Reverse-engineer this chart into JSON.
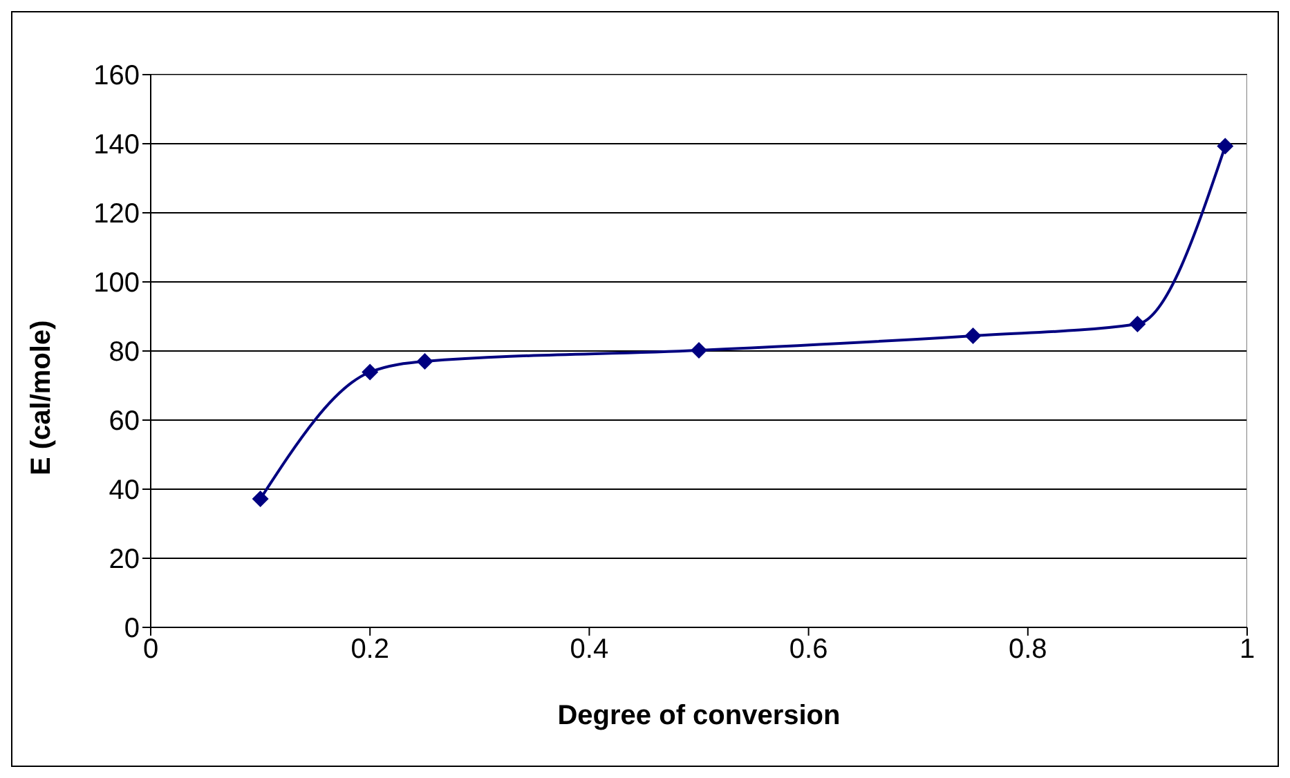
{
  "chart_data": {
    "type": "line",
    "xlabel": "Degree of conversion",
    "ylabel": "E (cal/mole)",
    "x": [
      0.1,
      0.2,
      0.25,
      0.5,
      0.75,
      0.9,
      0.98
    ],
    "series": [
      {
        "color": "#000080",
        "values": [
          37.2,
          73.9,
          77,
          80.2,
          84.4,
          87.8,
          139.3
        ]
      }
    ],
    "xlim": [
      0,
      1
    ],
    "xticks": [
      0,
      0.2,
      0.4,
      0.6,
      0.8,
      1
    ],
    "ylim": [
      0,
      160
    ],
    "yticks": [
      0,
      20,
      40,
      60,
      80,
      100,
      120,
      140,
      160
    ],
    "grid": "y",
    "marker": "diamond",
    "line_style": "solid",
    "legend": false
  }
}
